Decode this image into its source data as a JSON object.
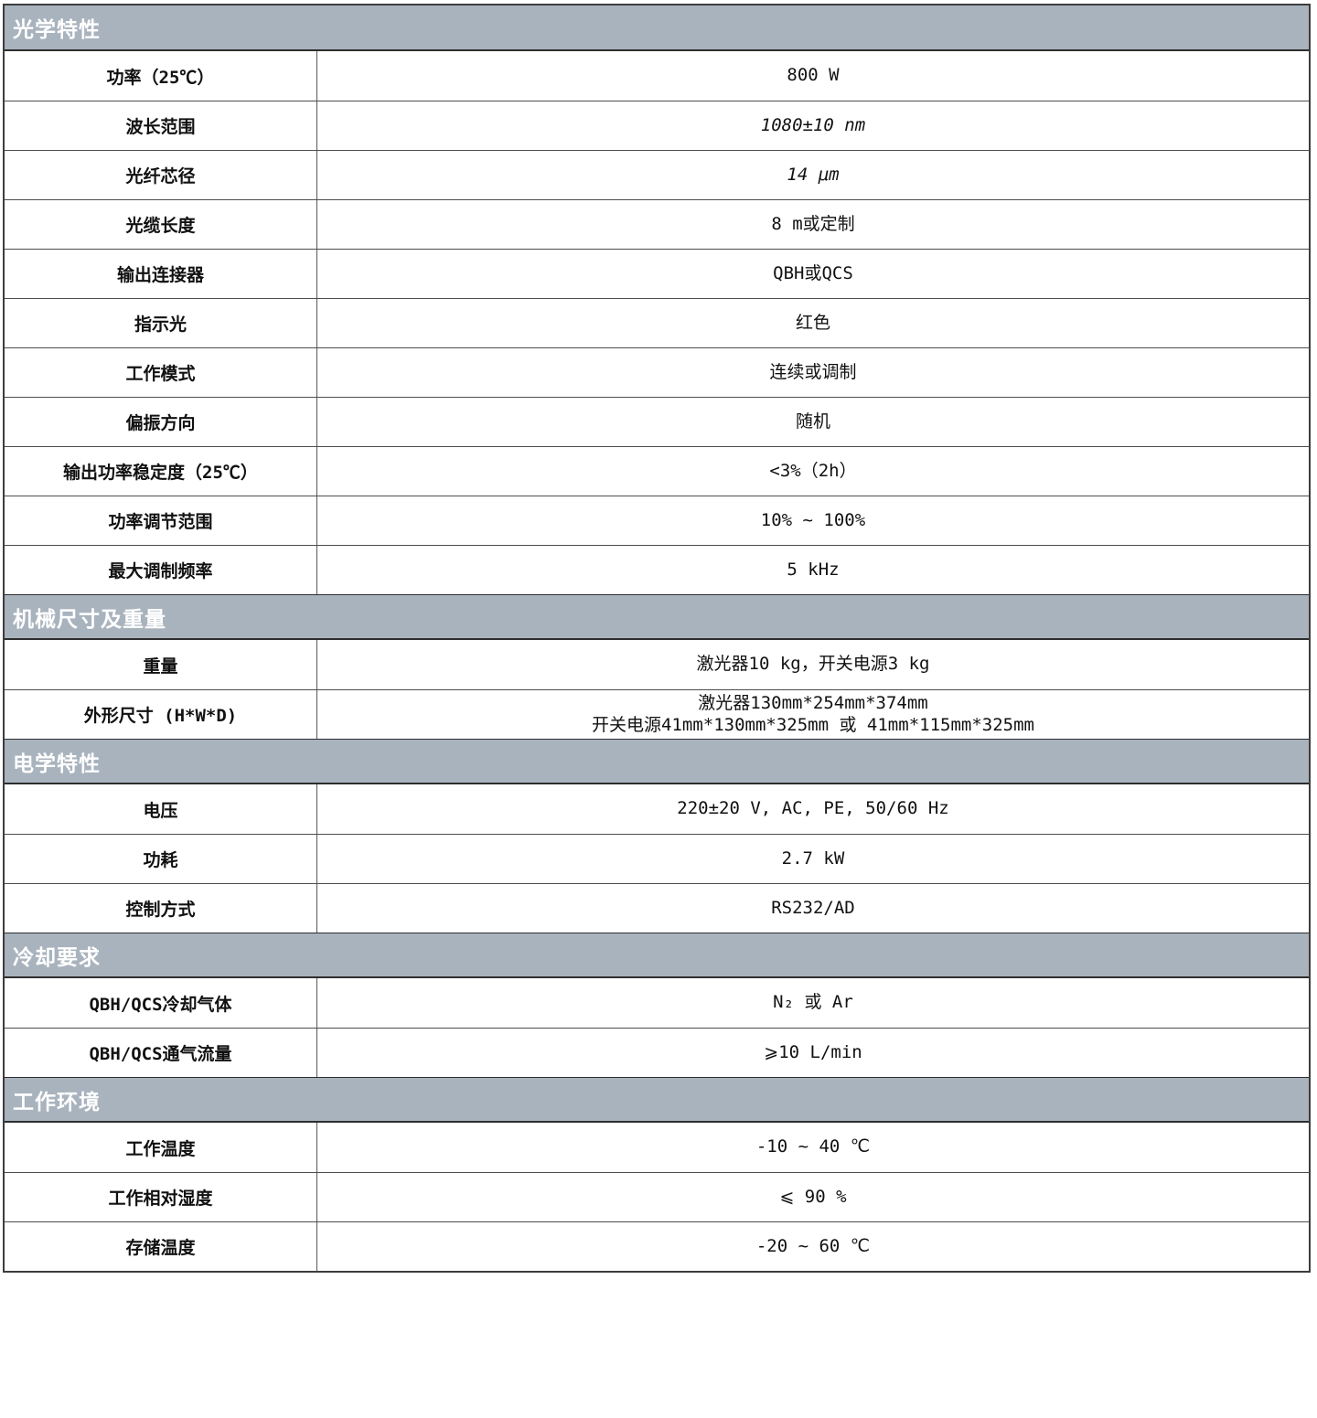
{
  "table": {
    "header_bg": "#a9b3be",
    "header_text_color": "#ffffff",
    "sections": [
      {
        "title": "光学特性",
        "rows": [
          {
            "label": "功率（25℃）",
            "value": "800 W"
          },
          {
            "label": "波长范围",
            "value": "1080±10 nm",
            "italic": true
          },
          {
            "label": "光纤芯径",
            "value": "14 μm",
            "italic": true
          },
          {
            "label": "光缆长度",
            "value": "8 m或定制"
          },
          {
            "label": "输出连接器",
            "value": "QBH或QCS"
          },
          {
            "label": "指示光",
            "value": "红色"
          },
          {
            "label": "工作模式",
            "value": "连续或调制"
          },
          {
            "label": "偏振方向",
            "value": "随机"
          },
          {
            "label": "输出功率稳定度（25℃）",
            "value": "<3%（2h）"
          },
          {
            "label": "功率调节范围",
            "value": "10% ~ 100%"
          },
          {
            "label": "最大调制频率",
            "value": "5 kHz"
          }
        ]
      },
      {
        "title": "机械尺寸及重量",
        "rows": [
          {
            "label": "重量",
            "value": "激光器10 kg，开关电源3 kg"
          },
          {
            "label": "外形尺寸 (H*W*D)",
            "value_lines": [
              "激光器130mm*254mm*374mm",
              "开关电源41mm*130mm*325mm 或 41mm*115mm*325mm"
            ]
          }
        ]
      },
      {
        "title": "电学特性",
        "rows": [
          {
            "label": "电压",
            "value": "220±20 V, AC, PE, 50/60 Hz"
          },
          {
            "label": "功耗",
            "value": "2.7 kW"
          },
          {
            "label": "控制方式",
            "value": "RS232/AD"
          }
        ]
      },
      {
        "title": "冷却要求",
        "rows": [
          {
            "label": "QBH/QCS冷却气体",
            "value": "N₂ 或 Ar"
          },
          {
            "label": "QBH/QCS通气流量",
            "value": "⩾10 L/min"
          }
        ]
      },
      {
        "title": "工作环境",
        "rows": [
          {
            "label": "工作温度",
            "value": "-10 ~ 40 ℃"
          },
          {
            "label": "工作相对湿度",
            "value": "⩽ 90 %"
          },
          {
            "label": "存储温度",
            "value": "-20 ~ 60 ℃"
          }
        ]
      }
    ]
  }
}
